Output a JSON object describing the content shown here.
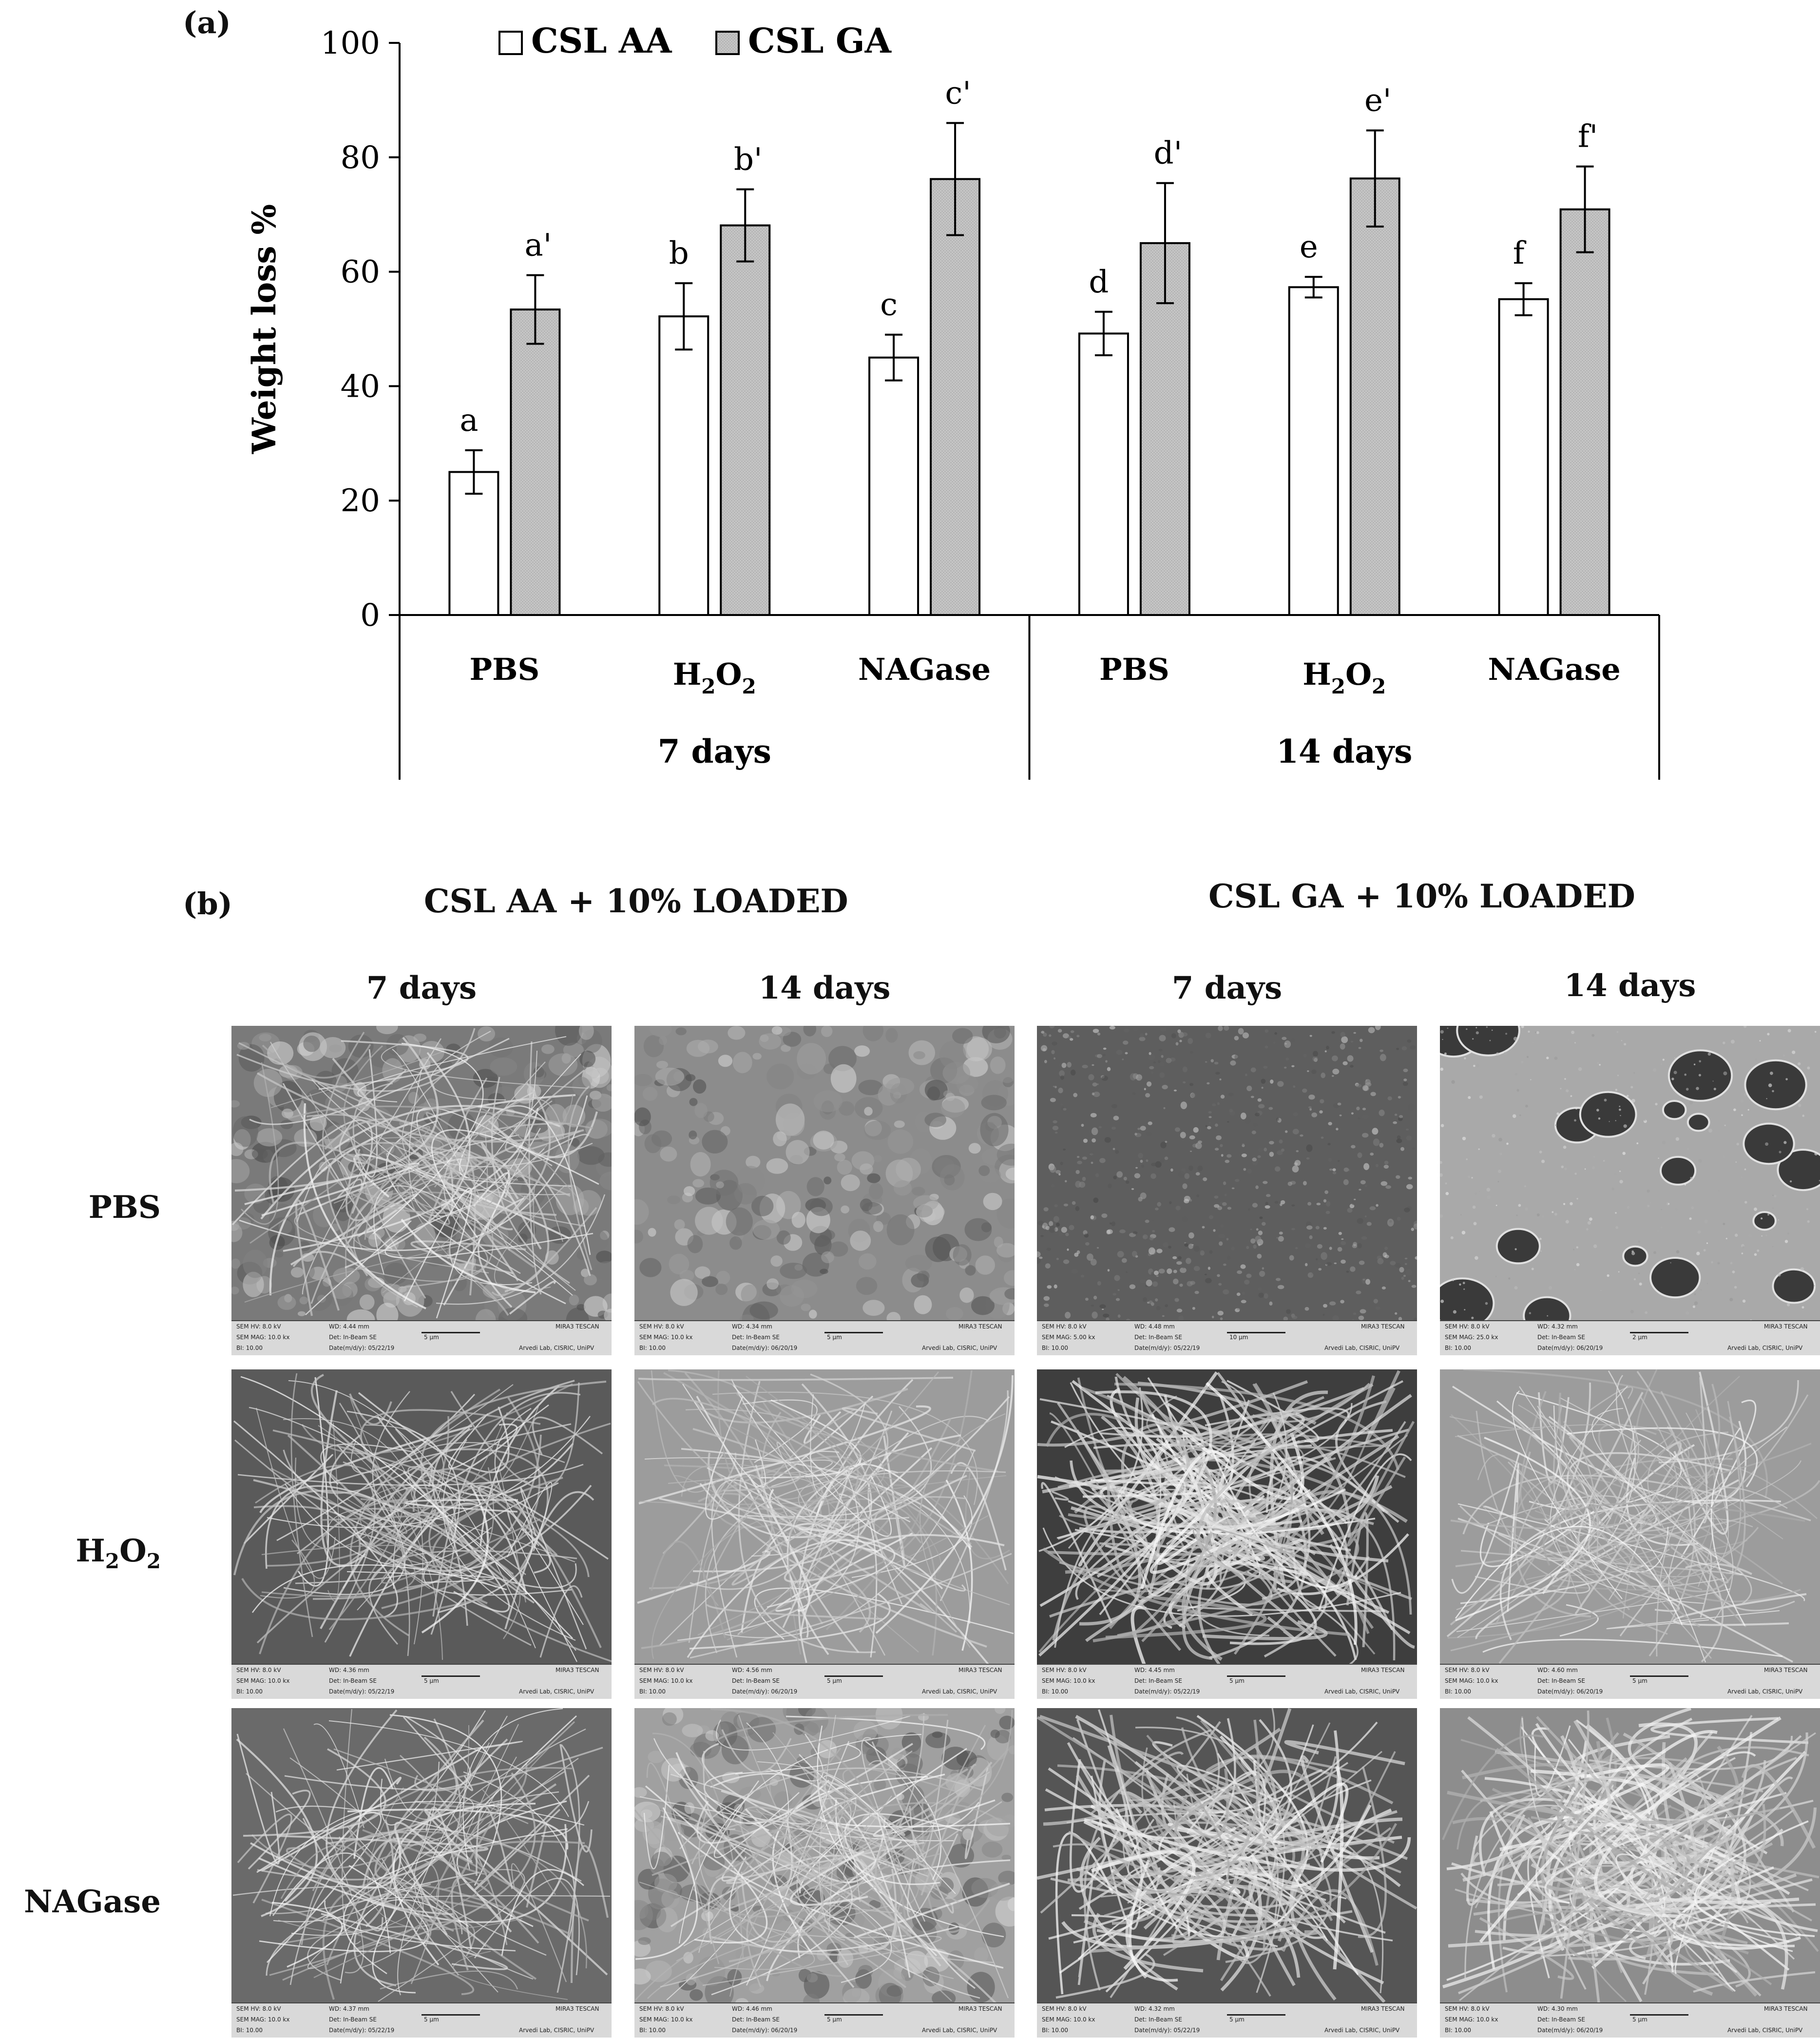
{
  "panel_a_label": "(a)",
  "panel_b_label": "(b)",
  "chart_data": {
    "type": "bar",
    "ylabel": "Weight loss %",
    "ylim": [
      0,
      100
    ],
    "yticks": [
      0,
      20,
      40,
      60,
      80,
      100
    ],
    "legend_position": "top-left",
    "categories": [
      {
        "label": "PBS",
        "sub": "",
        "group": "7 days"
      },
      {
        "label": "H",
        "sub": "2",
        "label2": "O",
        "sub2": "2",
        "group": "7 days"
      },
      {
        "label": "NAGase",
        "sub": "",
        "group": "7 days"
      },
      {
        "label": "PBS",
        "sub": "",
        "group": "14 days"
      },
      {
        "label": "H",
        "sub": "2",
        "label2": "O",
        "sub2": "2",
        "group": "14 days"
      },
      {
        "label": "NAGase",
        "sub": "",
        "group": "14 days"
      }
    ],
    "groups": [
      "7 days",
      "14 days"
    ],
    "series": [
      {
        "name": "CSL AA",
        "color": "#ffffff",
        "values": [
          25.0,
          52.2,
          45.0,
          49.2,
          57.3,
          55.2
        ],
        "errors": [
          3.8,
          5.8,
          4.0,
          3.8,
          1.8,
          2.8
        ],
        "letters": [
          "a",
          "b",
          "c",
          "d",
          "e",
          "f"
        ]
      },
      {
        "name": "CSL GA",
        "color": "#c0c0c0",
        "values": [
          53.4,
          68.1,
          76.2,
          65.0,
          76.3,
          70.9
        ],
        "errors": [
          6.0,
          6.3,
          9.8,
          10.5,
          8.4,
          7.5
        ],
        "letters": [
          "a'",
          "b'",
          "c'",
          "d'",
          "e'",
          "f'"
        ]
      }
    ]
  },
  "sem": {
    "header_aa": "CSL AA + 10% LOADED",
    "header_ga": "CSL GA + 10% LOADED",
    "col_heads": [
      "7 days",
      "14 days",
      "7 days",
      "14 days"
    ],
    "row_labels": [
      {
        "main": "PBS"
      },
      {
        "main": "H",
        "sub": "2",
        "main2": "O",
        "sub2": "2"
      },
      {
        "main": "NAGase"
      }
    ],
    "tiles": [
      [
        "ridged",
        "smooth-lumpy",
        "granular",
        "porous"
      ],
      [
        "mesh",
        "mesh-light",
        "fibers-dense",
        "mesh-light"
      ],
      [
        "ridged-mesh",
        "lumpy-mesh",
        "fibers",
        "fibers-fine"
      ]
    ],
    "scale_bar": {
      "hv": "SEM HV: 8.0 kV",
      "det": "Det: In-Beam SE",
      "bi": "BI: 10.00",
      "brand": "MIRA3 TESCAN",
      "lab": "Arvedi Lab, CISRIC, UniPV",
      "rows": [
        [
          {
            "wd": "WD: 4.44 mm",
            "mag": "SEM MAG: 10.0 kx",
            "scale": "5 µm",
            "date": "Date(m/d/y): 05/22/19"
          },
          {
            "wd": "WD: 4.34 mm",
            "mag": "SEM MAG: 10.0 kx",
            "scale": "5 µm",
            "date": "Date(m/d/y): 06/20/19"
          },
          {
            "wd": "WD: 4.48 mm",
            "mag": "SEM MAG: 5.00 kx",
            "scale": "10 µm",
            "date": "Date(m/d/y): 05/22/19"
          },
          {
            "wd": "WD: 4.32 mm",
            "mag": "SEM MAG: 25.0 kx",
            "scale": "2 µm",
            "date": "Date(m/d/y): 06/20/19"
          }
        ],
        [
          {
            "wd": "WD: 4.36 mm",
            "mag": "SEM MAG: 10.0 kx",
            "scale": "5 µm",
            "date": "Date(m/d/y): 05/22/19"
          },
          {
            "wd": "WD: 4.56 mm",
            "mag": "SEM MAG: 10.0 kx",
            "scale": "5 µm",
            "date": "Date(m/d/y): 06/20/19"
          },
          {
            "wd": "WD: 4.45 mm",
            "mag": "SEM MAG: 10.0 kx",
            "scale": "5 µm",
            "date": "Date(m/d/y): 05/22/19"
          },
          {
            "wd": "WD: 4.60 mm",
            "mag": "SEM MAG: 10.0 kx",
            "scale": "5 µm",
            "date": "Date(m/d/y): 06/20/19"
          }
        ],
        [
          {
            "wd": "WD: 4.37 mm",
            "mag": "SEM MAG: 10.0 kx",
            "scale": "5 µm",
            "date": "Date(m/d/y): 05/22/19"
          },
          {
            "wd": "WD: 4.46 mm",
            "mag": "SEM MAG: 10.0 kx",
            "scale": "5 µm",
            "date": "Date(m/d/y): 06/20/19"
          },
          {
            "wd": "WD: 4.32 mm",
            "mag": "SEM MAG: 10.0 kx",
            "scale": "5 µm",
            "date": "Date(m/d/y): 05/22/19"
          },
          {
            "wd": "WD: 4.30 mm",
            "mag": "SEM MAG: 10.0 kx",
            "scale": "5 µm",
            "date": "Date(m/d/y): 06/20/19"
          }
        ]
      ]
    }
  }
}
